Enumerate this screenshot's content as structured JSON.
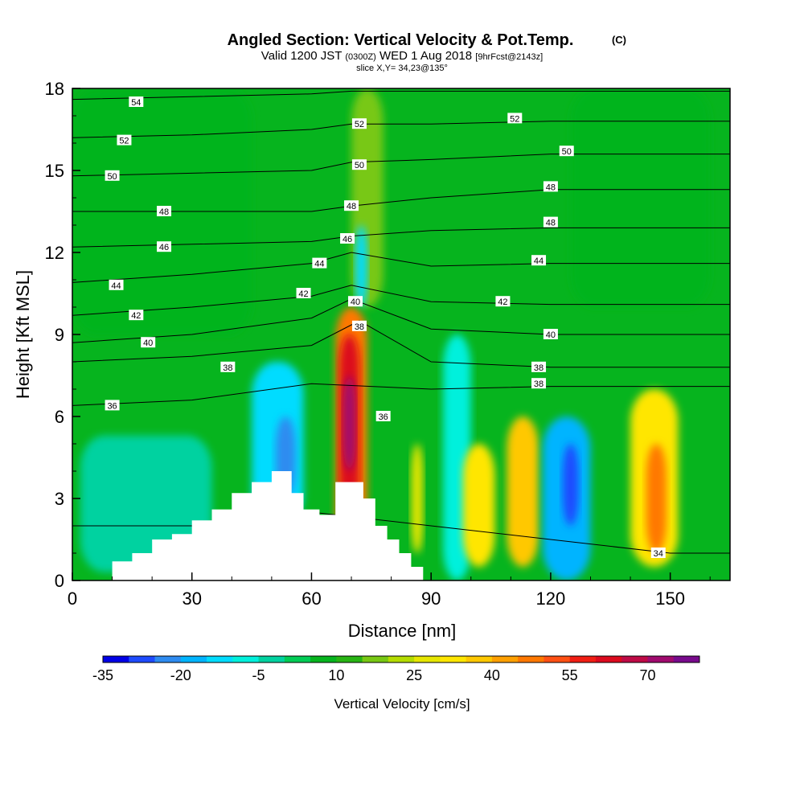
{
  "titles": {
    "main": "Angled Section: Vertical Velocity & Pot.Temp.",
    "main_suffix": "(C)",
    "valid_prefix": "Valid 1200 JST",
    "valid_utc": "(0300Z)",
    "valid_date": "WED 1 Aug 2018",
    "fcst": "[9hrFcst@2143z]",
    "slice": "slice X,Y= 34,23@135°"
  },
  "chart_data": {
    "type": "heatmap",
    "title": "Angled Section: Vertical Velocity & Pot.Temp.",
    "xlabel": "Distance [nm]",
    "ylabel": "Height [Kft MSL]",
    "xlim": [
      0,
      165
    ],
    "ylim": [
      0,
      18
    ],
    "x_ticks": [
      "0",
      "30",
      "60",
      "90",
      "120",
      "150"
    ],
    "y_ticks": [
      "0",
      "3",
      "6",
      "9",
      "12",
      "15",
      "18"
    ],
    "colorbar": {
      "label": "Vertical Velocity [cm/s]",
      "tick_labels": [
        "-35",
        "-20",
        "-5",
        "10",
        "25",
        "40",
        "55",
        "70"
      ],
      "levels": [
        -35,
        -30,
        -25,
        -20,
        -15,
        -10,
        -5,
        0,
        5,
        10,
        15,
        20,
        25,
        30,
        35,
        40,
        45,
        50,
        55,
        60,
        65,
        70,
        75
      ],
      "colors": [
        "#0000e6",
        "#1e4bff",
        "#2e8bf0",
        "#00b4ff",
        "#00dcff",
        "#00f0dc",
        "#00d2a0",
        "#00cc55",
        "#06b41e",
        "#28b414",
        "#78c814",
        "#b4dc00",
        "#e6e600",
        "#ffe600",
        "#ffc800",
        "#ffa000",
        "#ff7800",
        "#ff5014",
        "#f01e14",
        "#dc0a1e",
        "#be0a46",
        "#a00a6e",
        "#780a8c"
      ]
    },
    "velocity_cells": [
      {
        "x": [
          0,
          165
        ],
        "y": [
          0,
          18
        ],
        "w": 6
      },
      {
        "x": [
          0,
          45
        ],
        "y": [
          9,
          18
        ],
        "w": 9
      },
      {
        "x": [
          125,
          160
        ],
        "y": [
          10,
          18
        ],
        "w": 9
      },
      {
        "x": [
          2,
          35
        ],
        "y": [
          0.3,
          5.3
        ],
        "w": -3
      },
      {
        "x": [
          93,
          100
        ],
        "y": [
          0,
          9
        ],
        "w": -6
      },
      {
        "x": [
          45,
          58
        ],
        "y": [
          2,
          8
        ],
        "w": -15
      },
      {
        "x": [
          51,
          56
        ],
        "y": [
          3,
          6
        ],
        "w": -25
      },
      {
        "x": [
          66,
          74
        ],
        "y": [
          1,
          10
        ],
        "w": 45
      },
      {
        "x": [
          67,
          72
        ],
        "y": [
          2,
          9
        ],
        "w": 60
      },
      {
        "x": [
          68,
          71
        ],
        "y": [
          4,
          7.5
        ],
        "w": 70
      },
      {
        "x": [
          70,
          78
        ],
        "y": [
          10,
          18
        ],
        "w": 17
      },
      {
        "x": [
          71,
          74
        ],
        "y": [
          10,
          13
        ],
        "w": -15
      },
      {
        "x": [
          85,
          88
        ],
        "y": [
          1,
          5
        ],
        "w": 25
      },
      {
        "x": [
          98,
          106
        ],
        "y": [
          0.5,
          5
        ],
        "w": 30
      },
      {
        "x": [
          109,
          117
        ],
        "y": [
          0.5,
          6
        ],
        "w": 35
      },
      {
        "x": [
          118,
          130
        ],
        "y": [
          0,
          6
        ],
        "w": -18
      },
      {
        "x": [
          123,
          127
        ],
        "y": [
          2,
          5
        ],
        "w": -30
      },
      {
        "x": [
          140,
          152
        ],
        "y": [
          0.5,
          7
        ],
        "w": 30
      },
      {
        "x": [
          144,
          149
        ],
        "y": [
          1,
          5
        ],
        "w": 45
      }
    ],
    "terrain": [
      {
        "x": 10,
        "h": 0.7
      },
      {
        "x": 15,
        "h": 1.0
      },
      {
        "x": 20,
        "h": 1.5
      },
      {
        "x": 25,
        "h": 1.7
      },
      {
        "x": 30,
        "h": 2.2
      },
      {
        "x": 35,
        "h": 2.6
      },
      {
        "x": 40,
        "h": 3.2
      },
      {
        "x": 45,
        "h": 3.6
      },
      {
        "x": 50,
        "h": 4.0
      },
      {
        "x": 55,
        "h": 3.2
      },
      {
        "x": 58,
        "h": 2.6
      },
      {
        "x": 62,
        "h": 2.4
      },
      {
        "x": 66,
        "h": 3.6
      },
      {
        "x": 70,
        "h": 3.6
      },
      {
        "x": 73,
        "h": 3.0
      },
      {
        "x": 76,
        "h": 2.0
      },
      {
        "x": 79,
        "h": 1.5
      },
      {
        "x": 82,
        "h": 1.0
      },
      {
        "x": 85,
        "h": 0.5
      },
      {
        "x": 88,
        "h": 0.3
      }
    ],
    "theta_contours": [
      {
        "label": "34",
        "points": [
          [
            0,
            2.0
          ],
          [
            30,
            2.0
          ],
          [
            60,
            2.5
          ],
          [
            90,
            2.0
          ],
          [
            120,
            1.5
          ],
          [
            150,
            1.0
          ],
          [
            165,
            1.0
          ]
        ]
      },
      {
        "label": "36",
        "points": [
          [
            0,
            6.4
          ],
          [
            30,
            6.6
          ],
          [
            60,
            7.2
          ],
          [
            90,
            7.0
          ],
          [
            120,
            7.1
          ],
          [
            150,
            7.1
          ],
          [
            165,
            7.1
          ]
        ]
      },
      {
        "label": "38",
        "points": [
          [
            0,
            8.0
          ],
          [
            30,
            8.2
          ],
          [
            60,
            8.6
          ],
          [
            72,
            9.5
          ],
          [
            90,
            8.0
          ],
          [
            120,
            7.8
          ],
          [
            165,
            7.8
          ]
        ]
      },
      {
        "label": "40",
        "points": [
          [
            0,
            8.7
          ],
          [
            30,
            9.0
          ],
          [
            60,
            9.6
          ],
          [
            70,
            10.3
          ],
          [
            90,
            9.2
          ],
          [
            120,
            9.0
          ],
          [
            165,
            9.0
          ]
        ]
      },
      {
        "label": "42",
        "points": [
          [
            0,
            9.7
          ],
          [
            30,
            10.0
          ],
          [
            60,
            10.4
          ],
          [
            70,
            10.8
          ],
          [
            90,
            10.2
          ],
          [
            120,
            10.1
          ],
          [
            165,
            10.1
          ]
        ]
      },
      {
        "label": "44",
        "points": [
          [
            0,
            10.9
          ],
          [
            30,
            11.2
          ],
          [
            60,
            11.6
          ],
          [
            70,
            12.0
          ],
          [
            90,
            11.5
          ],
          [
            120,
            11.6
          ],
          [
            165,
            11.6
          ]
        ]
      },
      {
        "label": "46",
        "points": [
          [
            0,
            12.2
          ],
          [
            30,
            12.3
          ],
          [
            60,
            12.4
          ],
          [
            70,
            12.6
          ],
          [
            90,
            12.8
          ],
          [
            120,
            12.9
          ],
          [
            165,
            12.9
          ]
        ]
      },
      {
        "label": "48",
        "points": [
          [
            0,
            13.5
          ],
          [
            30,
            13.5
          ],
          [
            60,
            13.5
          ],
          [
            70,
            13.7
          ],
          [
            90,
            14.0
          ],
          [
            120,
            14.3
          ],
          [
            165,
            14.3
          ]
        ]
      },
      {
        "label": "50",
        "points": [
          [
            0,
            14.8
          ],
          [
            30,
            14.9
          ],
          [
            60,
            15.0
          ],
          [
            70,
            15.3
          ],
          [
            90,
            15.4
          ],
          [
            120,
            15.6
          ],
          [
            165,
            15.6
          ]
        ]
      },
      {
        "label": "52",
        "points": [
          [
            0,
            16.2
          ],
          [
            30,
            16.3
          ],
          [
            60,
            16.5
          ],
          [
            70,
            16.7
          ],
          [
            90,
            16.7
          ],
          [
            120,
            16.8
          ],
          [
            165,
            16.8
          ]
        ]
      },
      {
        "label": "54",
        "points": [
          [
            0,
            17.6
          ],
          [
            30,
            17.7
          ],
          [
            60,
            17.8
          ],
          [
            70,
            17.9
          ],
          [
            90,
            17.9
          ],
          [
            120,
            17.9
          ],
          [
            165,
            17.9
          ]
        ]
      }
    ],
    "contour_labels": [
      {
        "text": "54",
        "x": 16,
        "y": 17.5
      },
      {
        "text": "52",
        "x": 13,
        "y": 16.1
      },
      {
        "text": "50",
        "x": 10,
        "y": 14.8
      },
      {
        "text": "48",
        "x": 23,
        "y": 13.5
      },
      {
        "text": "46",
        "x": 23,
        "y": 12.2
      },
      {
        "text": "44",
        "x": 11,
        "y": 10.8
      },
      {
        "text": "42",
        "x": 16,
        "y": 9.7
      },
      {
        "text": "40",
        "x": 19,
        "y": 8.7
      },
      {
        "text": "38",
        "x": 39,
        "y": 7.8
      },
      {
        "text": "36",
        "x": 10,
        "y": 6.4
      },
      {
        "text": "44",
        "x": 62,
        "y": 11.6
      },
      {
        "text": "42",
        "x": 58,
        "y": 10.5
      },
      {
        "text": "52",
        "x": 72,
        "y": 16.7
      },
      {
        "text": "50",
        "x": 72,
        "y": 15.2
      },
      {
        "text": "48",
        "x": 70,
        "y": 13.7
      },
      {
        "text": "46",
        "x": 69,
        "y": 12.5
      },
      {
        "text": "40",
        "x": 71,
        "y": 10.2
      },
      {
        "text": "38",
        "x": 72,
        "y": 9.3
      },
      {
        "text": "36",
        "x": 78,
        "y": 6.0
      },
      {
        "text": "52",
        "x": 111,
        "y": 16.9
      },
      {
        "text": "50",
        "x": 124,
        "y": 15.7
      },
      {
        "text": "48",
        "x": 120,
        "y": 14.4
      },
      {
        "text": "48",
        "x": 120,
        "y": 13.1
      },
      {
        "text": "44",
        "x": 117,
        "y": 11.7
      },
      {
        "text": "42",
        "x": 108,
        "y": 10.2
      },
      {
        "text": "40",
        "x": 120,
        "y": 9.0
      },
      {
        "text": "38",
        "x": 117,
        "y": 7.8
      },
      {
        "text": "38",
        "x": 117,
        "y": 7.2
      },
      {
        "text": "34",
        "x": 147,
        "y": 1.0
      }
    ]
  }
}
